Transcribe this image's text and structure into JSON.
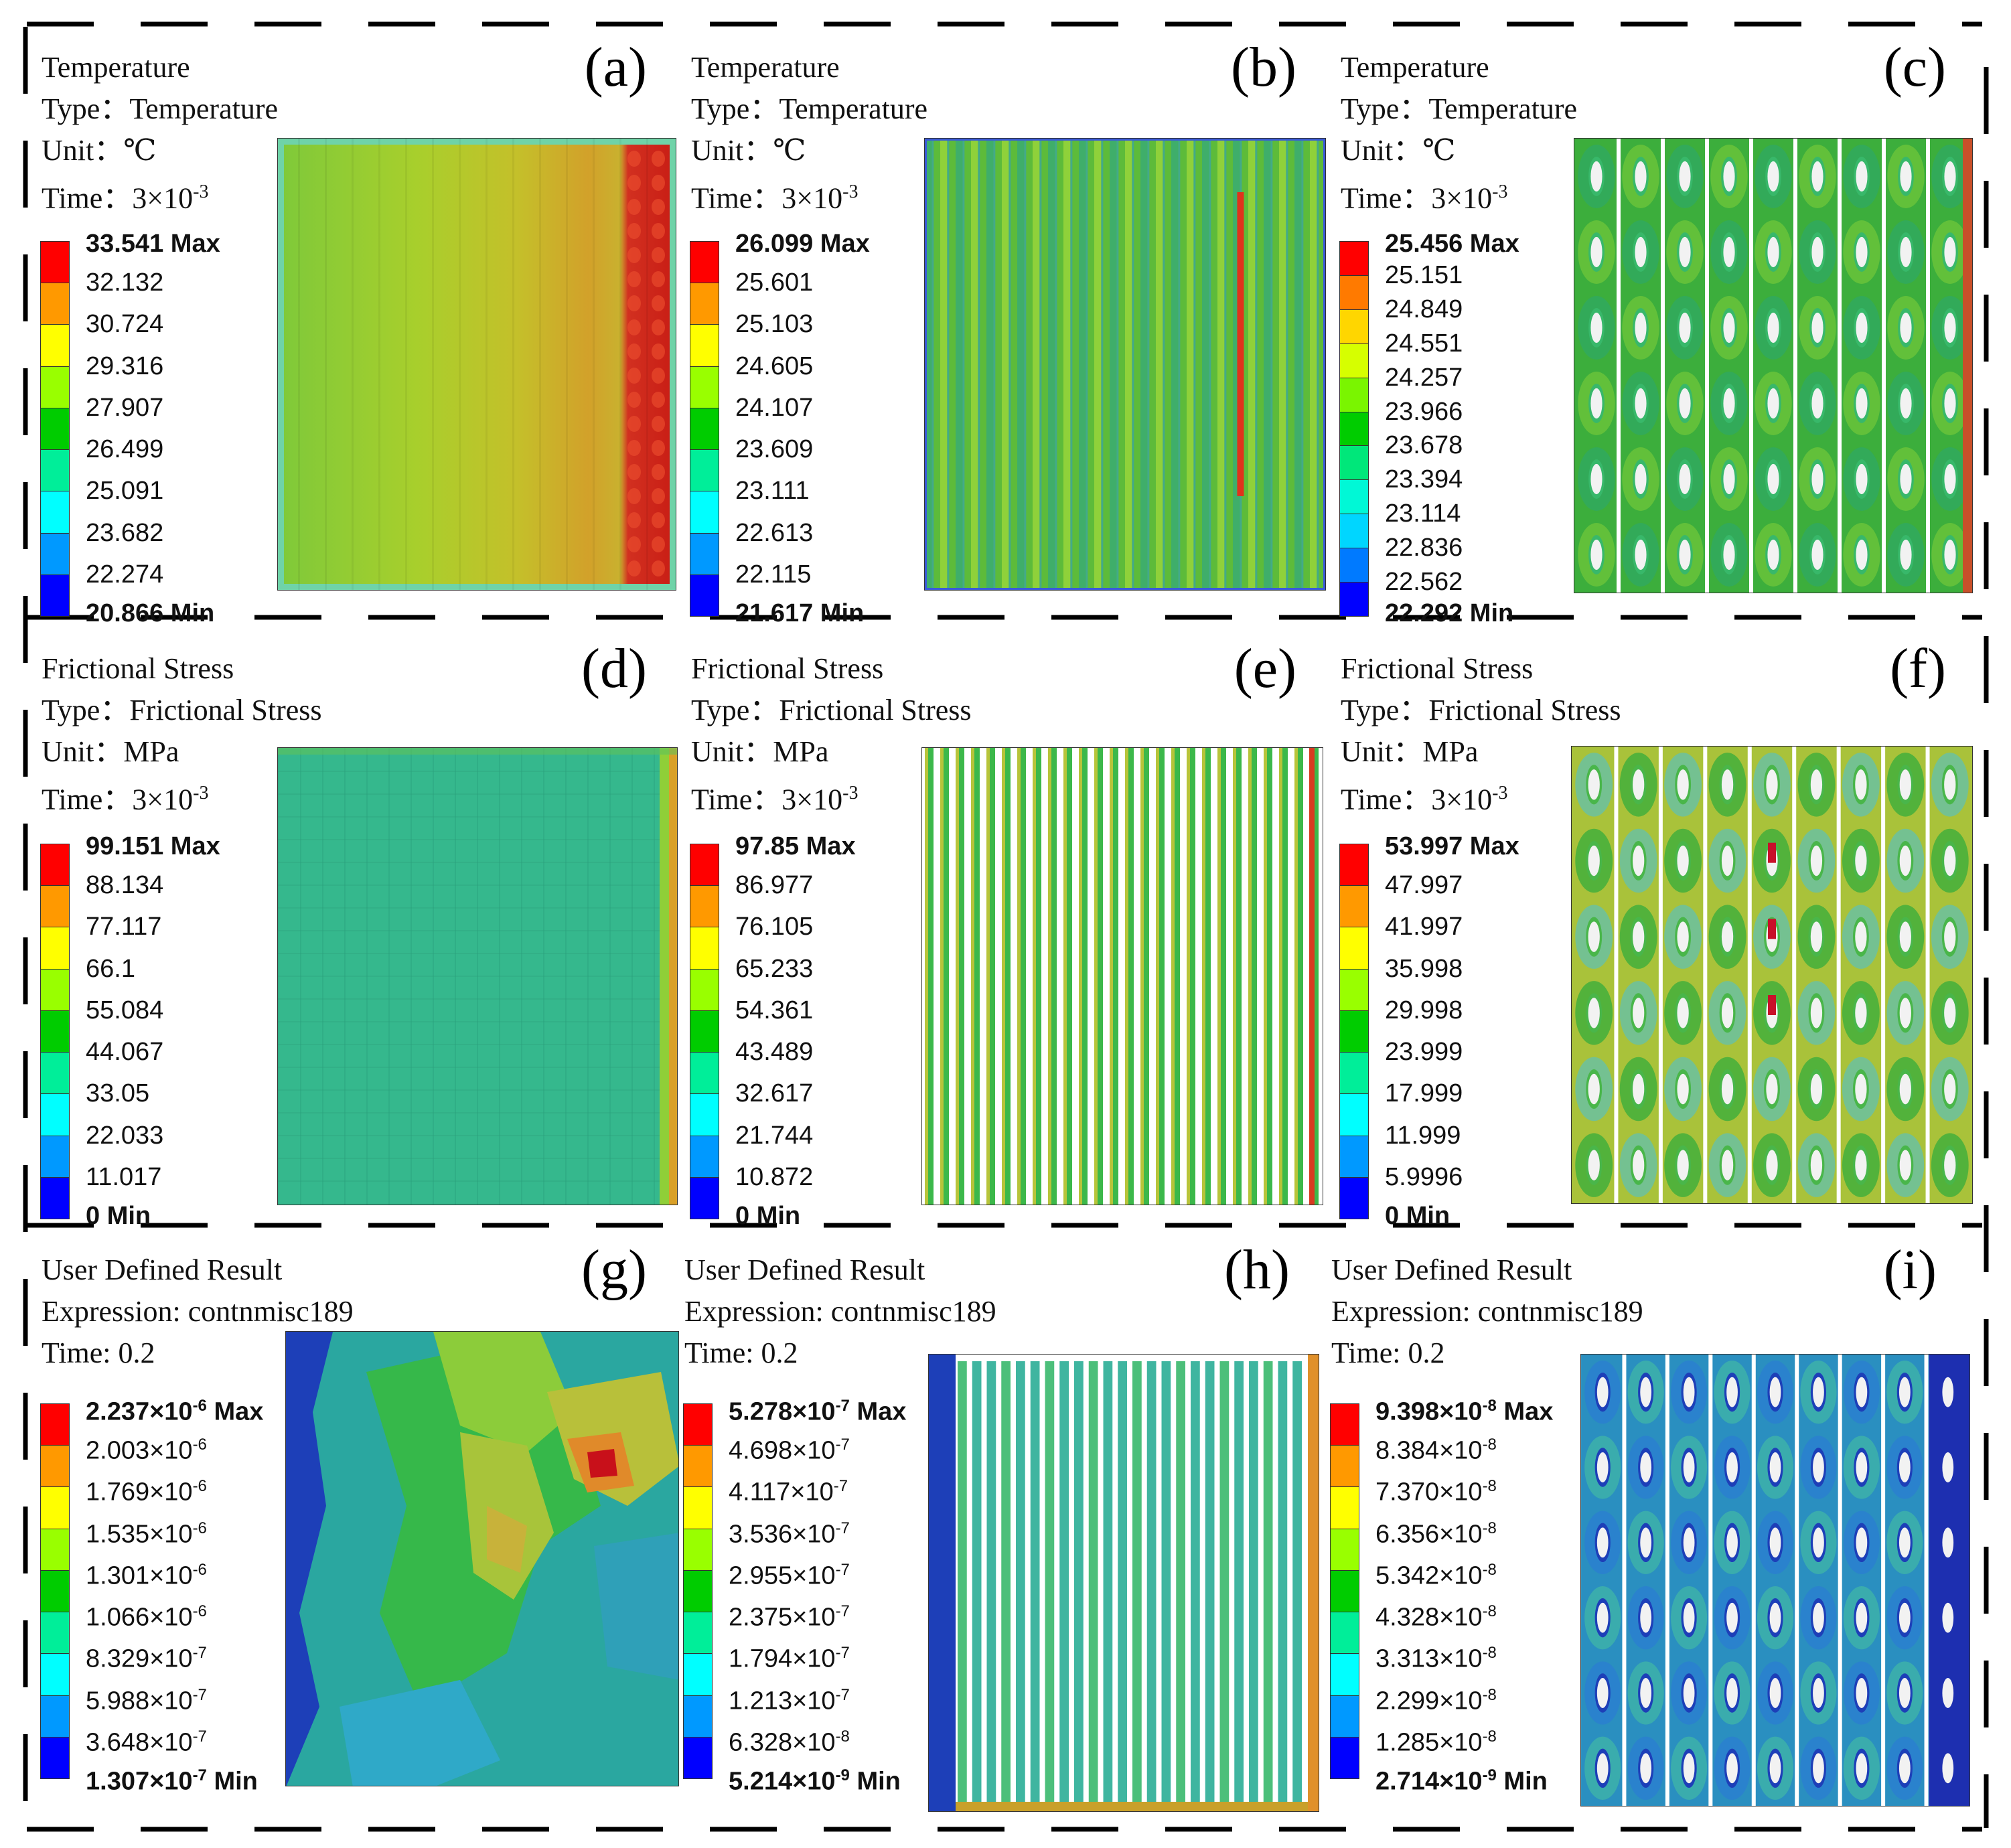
{
  "colorbar_colors": [
    "#ff0000",
    "#ff9900",
    "#ffff00",
    "#99ff00",
    "#00cc00",
    "#00ee99",
    "#00ffff",
    "#0099ff",
    "#0000ff"
  ],
  "panels": [
    {
      "tag": "(a)",
      "title": "Temperature",
      "type_line": "Type：Temperature",
      "unit_line": "Unit：℃",
      "time_line": "Time：3×10",
      "time_exp": "-3",
      "legend": [
        {
          "text": "33.541 Max"
        },
        {
          "text": "32.132"
        },
        {
          "text": "30.724"
        },
        {
          "text": "29.316"
        },
        {
          "text": "27.907"
        },
        {
          "text": "26.499"
        },
        {
          "text": "25.091"
        },
        {
          "text": "23.682"
        },
        {
          "text": "22.274"
        },
        {
          "text": "20.866 Min"
        }
      ]
    },
    {
      "tag": "(b)",
      "title": "Temperature",
      "type_line": "Type：Temperature",
      "unit_line": "Unit：℃",
      "time_line": "Time：3×10",
      "time_exp": "-3",
      "legend": [
        {
          "text": "26.099 Max"
        },
        {
          "text": "25.601"
        },
        {
          "text": "25.103"
        },
        {
          "text": "24.605"
        },
        {
          "text": "24.107"
        },
        {
          "text": "23.609"
        },
        {
          "text": "23.111"
        },
        {
          "text": "22.613"
        },
        {
          "text": "22.115"
        },
        {
          "text": "21.617 Min"
        }
      ]
    },
    {
      "tag": "(c)",
      "title": "Temperature",
      "type_line": "Type：Temperature",
      "unit_line": "Unit：℃",
      "time_line": "Time：3×10",
      "time_exp": "-3",
      "legend": [
        {
          "text": "25.456 Max"
        },
        {
          "text": "25.151"
        },
        {
          "text": "24.849"
        },
        {
          "text": "24.551"
        },
        {
          "text": "24.257"
        },
        {
          "text": "23.966"
        },
        {
          "text": "23.678"
        },
        {
          "text": "23.394"
        },
        {
          "text": "23.114"
        },
        {
          "text": "22.836"
        },
        {
          "text": "22.562"
        },
        {
          "text": "22.292 Min"
        }
      ]
    },
    {
      "tag": "(d)",
      "title": "Frictional Stress",
      "type_line": "Type：Frictional Stress",
      "unit_line": "Unit：MPa",
      "time_line": "Time：3×10",
      "time_exp": "-3",
      "legend": [
        {
          "text": "99.151 Max"
        },
        {
          "text": "88.134"
        },
        {
          "text": "77.117"
        },
        {
          "text": "66.1"
        },
        {
          "text": "55.084"
        },
        {
          "text": "44.067"
        },
        {
          "text": "33.05"
        },
        {
          "text": "22.033"
        },
        {
          "text": "11.017"
        },
        {
          "text": "0 Min"
        }
      ]
    },
    {
      "tag": "(e)",
      "title": "Frictional Stress",
      "type_line": "Type：Frictional Stress",
      "unit_line": "Unit：MPa",
      "time_line": "Time：3×10",
      "time_exp": "-3",
      "legend": [
        {
          "text": "97.85 Max"
        },
        {
          "text": "86.977"
        },
        {
          "text": "76.105"
        },
        {
          "text": "65.233"
        },
        {
          "text": "54.361"
        },
        {
          "text": "43.489"
        },
        {
          "text": "32.617"
        },
        {
          "text": "21.744"
        },
        {
          "text": "10.872"
        },
        {
          "text": "0 Min"
        }
      ]
    },
    {
      "tag": "(f)",
      "title": "Frictional Stress",
      "type_line": "Type：Frictional Stress",
      "unit_line": "Unit：MPa",
      "time_line": "Time：3×10",
      "time_exp": "-3",
      "legend": [
        {
          "text": "53.997 Max"
        },
        {
          "text": "47.997"
        },
        {
          "text": "41.997"
        },
        {
          "text": "35.998"
        },
        {
          "text": "29.998"
        },
        {
          "text": "23.999"
        },
        {
          "text": "17.999"
        },
        {
          "text": "11.999"
        },
        {
          "text": "5.9996"
        },
        {
          "text": "0 Min"
        }
      ]
    },
    {
      "tag": "(g)",
      "title": "User Defined Result",
      "type_line": "Expression: contnmisc189",
      "unit_line": "Time: 0.2",
      "time_line": "",
      "time_exp": "",
      "legend": [
        {
          "text": "2.237×10",
          "exp": "-6",
          "suffix": " Max"
        },
        {
          "text": "2.003×10",
          "exp": "-6"
        },
        {
          "text": "1.769×10",
          "exp": "-6"
        },
        {
          "text": "1.535×10",
          "exp": "-6"
        },
        {
          "text": "1.301×10",
          "exp": "-6"
        },
        {
          "text": "1.066×10",
          "exp": "-6"
        },
        {
          "text": "8.329×10",
          "exp": "-7"
        },
        {
          "text": "5.988×10",
          "exp": "-7"
        },
        {
          "text": "3.648×10",
          "exp": "-7"
        },
        {
          "text": "1.307×10",
          "exp": "-7",
          "suffix": " Min"
        }
      ]
    },
    {
      "tag": "(h)",
      "title": "User Defined Result",
      "type_line": "Expression: contnmisc189",
      "unit_line": "Time: 0.2",
      "time_line": "",
      "time_exp": "",
      "legend": [
        {
          "text": "5.278×10",
          "exp": "-7",
          "suffix": " Max"
        },
        {
          "text": "4.698×10",
          "exp": "-7"
        },
        {
          "text": "4.117×10",
          "exp": "-7"
        },
        {
          "text": "3.536×10",
          "exp": "-7"
        },
        {
          "text": "2.955×10",
          "exp": "-7"
        },
        {
          "text": "2.375×10",
          "exp": "-7"
        },
        {
          "text": "1.794×10",
          "exp": "-7"
        },
        {
          "text": "1.213×10",
          "exp": "-7"
        },
        {
          "text": "6.328×10",
          "exp": "-8"
        },
        {
          "text": "5.214×10",
          "exp": "-9",
          "suffix": " Min"
        }
      ]
    },
    {
      "tag": "(i)",
      "title": "User Defined Result",
      "type_line": "Expression: contnmisc189",
      "unit_line": "Time: 0.2",
      "time_line": "",
      "time_exp": "",
      "legend": [
        {
          "text": "9.398×10",
          "exp": "-8",
          "suffix": " Max"
        },
        {
          "text": "8.384×10",
          "exp": "-8"
        },
        {
          "text": "7.370×10",
          "exp": "-8"
        },
        {
          "text": "6.356×10",
          "exp": "-8"
        },
        {
          "text": "5.342×10",
          "exp": "-8"
        },
        {
          "text": "4.328×10",
          "exp": "-8"
        },
        {
          "text": "3.313×10",
          "exp": "-8"
        },
        {
          "text": "2.299×10",
          "exp": "-8"
        },
        {
          "text": "1.285×10",
          "exp": "-8"
        },
        {
          "text": "2.714×10",
          "exp": "-9",
          "suffix": " Min"
        }
      ]
    }
  ]
}
